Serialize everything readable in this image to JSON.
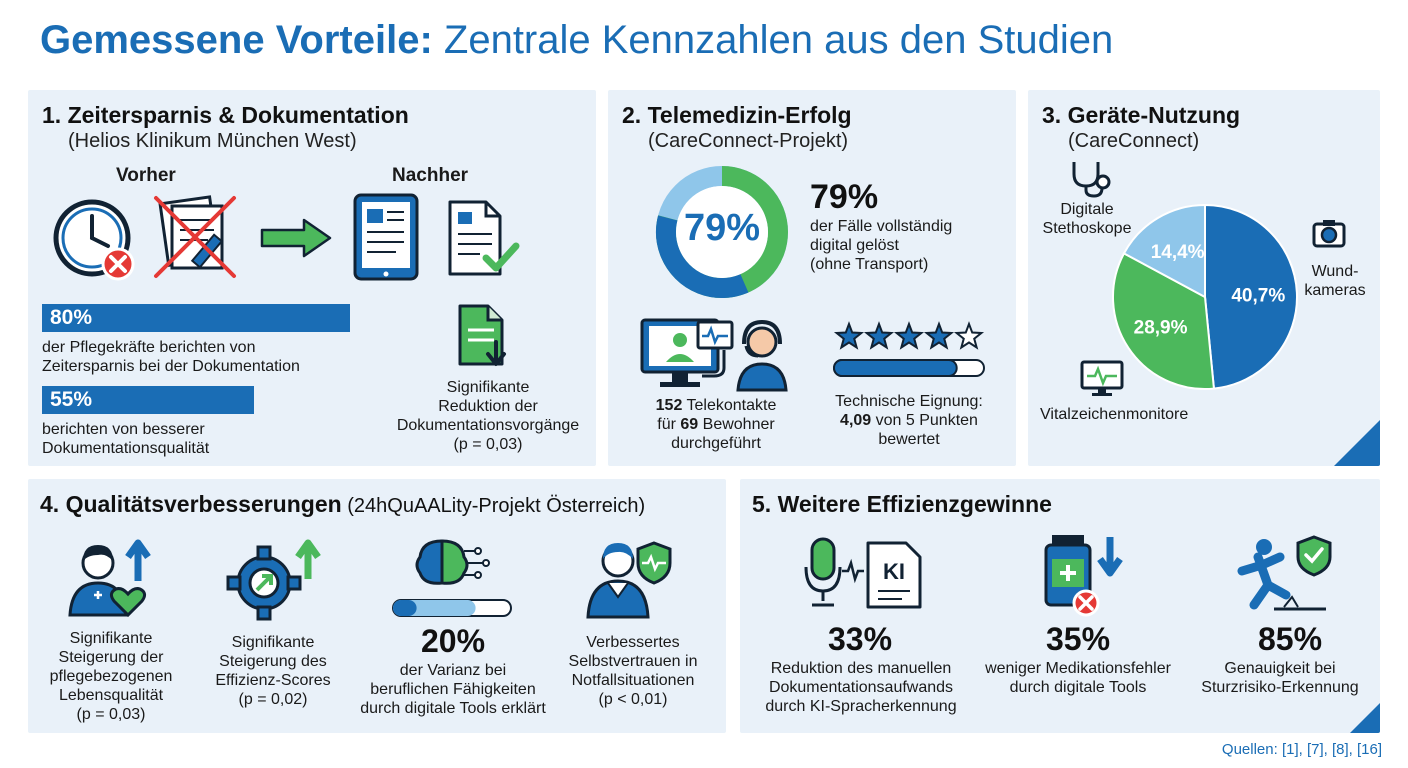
{
  "title": {
    "bold": "Gemessene Vorteile:",
    "rest": " Zentrale Kennzahlen aus den Studien"
  },
  "colors": {
    "blue": "#1a6db5",
    "green": "#4cb85c",
    "light_blue": "#8fc6ea",
    "panel": "#e9f1f9"
  },
  "p1": {
    "heading": "1. Zeitersparnis & Dokumentation",
    "sub": "(Helios Klinikum München West)",
    "before": "Vorher",
    "after": "Nachher",
    "stat1": {
      "value": "80%",
      "fraction": 0.8,
      "text1": "der Pflegekräfte berichten von",
      "text2": "Zeitersparnis bei der Dokumentation"
    },
    "stat2": {
      "value": "55%",
      "fraction": 0.55,
      "text1": "berichten von besserer",
      "text2": "Dokumentationsqualität"
    },
    "note": {
      "l1": "Signifikante",
      "l2": "Reduktion der",
      "l3": "Dokumentationsvorgänge",
      "l4": "(p = 0,03)"
    },
    "icons": [
      "clock-icon",
      "crossed-paper-icon",
      "arrow-right-icon",
      "tablet-icon",
      "checked-document-icon",
      "document-download-icon"
    ]
  },
  "p2": {
    "heading": "2. Telemedizin-Erfolg",
    "sub": "(CareConnect-Projekt)",
    "donut_value": 0.79,
    "donut_label": "79%",
    "big": "79%",
    "desc1": "der Fälle vollständig",
    "desc2": "digital gelöst",
    "desc3": "(ohne Transport)",
    "contacts": {
      "n1": "152",
      "t1": " Telekontakte",
      "l2a": "für ",
      "n2": "69",
      "l2b": " Bewohner",
      "l3": "durchgeführt"
    },
    "rating": {
      "value": 4.09,
      "max": 5,
      "l1": "Technische Eignung:",
      "v": "4,09",
      "l2rest": " von 5 Punkten",
      "l3": "bewertet"
    },
    "icons": [
      "telemedicine-workstation-icon",
      "headset-nurse-icon",
      "star-icon"
    ]
  },
  "p3": {
    "heading": "3. Geräte-Nutzung",
    "sub": "(CareConnect)",
    "icons": [
      "stethoscope-icon",
      "camera-icon",
      "monitor-icon"
    ]
  },
  "chart_data": {
    "type": "pie",
    "categories": [
      "Wundkameras",
      "Vitalzeichenmonitore",
      "Digitale Stethoskope"
    ],
    "values": [
      40.7,
      28.9,
      14.4
    ],
    "value_labels": [
      "40,7%",
      "28,9%",
      "14,4%"
    ],
    "colors": [
      "#1a6db5",
      "#4cb85c",
      "#8fc6ea"
    ],
    "labels": {
      "steth1": "Digitale",
      "steth2": "Stethoskope",
      "wund1": "Wund-",
      "wund2": "kameras",
      "vital": "Vitalzeichenmonitore"
    }
  },
  "p4": {
    "heading": "4. Qualitätsverbesserungen",
    "sub": " (24hQuAALity-Projekt Österreich)",
    "items": [
      {
        "l1": "Signifikante",
        "l2": "Steigerung der",
        "l3": "pflegebezogenen",
        "l4": "Lebensqualität",
        "l5": "(p = 0,03)"
      },
      {
        "l1": "Signifikante",
        "l2": "Steigerung des",
        "l3": "Effizienz-Scores",
        "l4": "(p = 0,02)"
      },
      {
        "big": "20%",
        "fraction": 0.2,
        "l1": "der Varianz bei",
        "l2": "beruflichen Fähigkeiten",
        "l3": "durch digitale Tools erklärt"
      },
      {
        "l1": "Verbessertes",
        "l2": "Selbstvertrauen in",
        "l3": "Notfallsituationen",
        "l4": "(p < 0,01)"
      }
    ],
    "icons": [
      "caregiver-heart-icon",
      "gear-growth-icon",
      "brain-circuit-icon",
      "nurse-shield-icon"
    ]
  },
  "p5": {
    "heading": "5. Weitere Effizienzgewinne",
    "items": [
      {
        "big": "33%",
        "l1": "Reduktion des manuellen",
        "l2": "Dokumentationsaufwands",
        "l3": "durch KI-Spracherkennung"
      },
      {
        "big": "35%",
        "l1": "weniger Medikationsfehler",
        "l2": "durch digitale Tools"
      },
      {
        "big": "85%",
        "l1": "Genauigkeit bei",
        "l2": "Sturzrisiko-Erkennung"
      }
    ],
    "ki_label": "KI",
    "icons": [
      "microphone-ki-icon",
      "medication-down-icon",
      "fall-risk-icon"
    ]
  },
  "sources": "Quellen: [1], [7], [8], [16]"
}
